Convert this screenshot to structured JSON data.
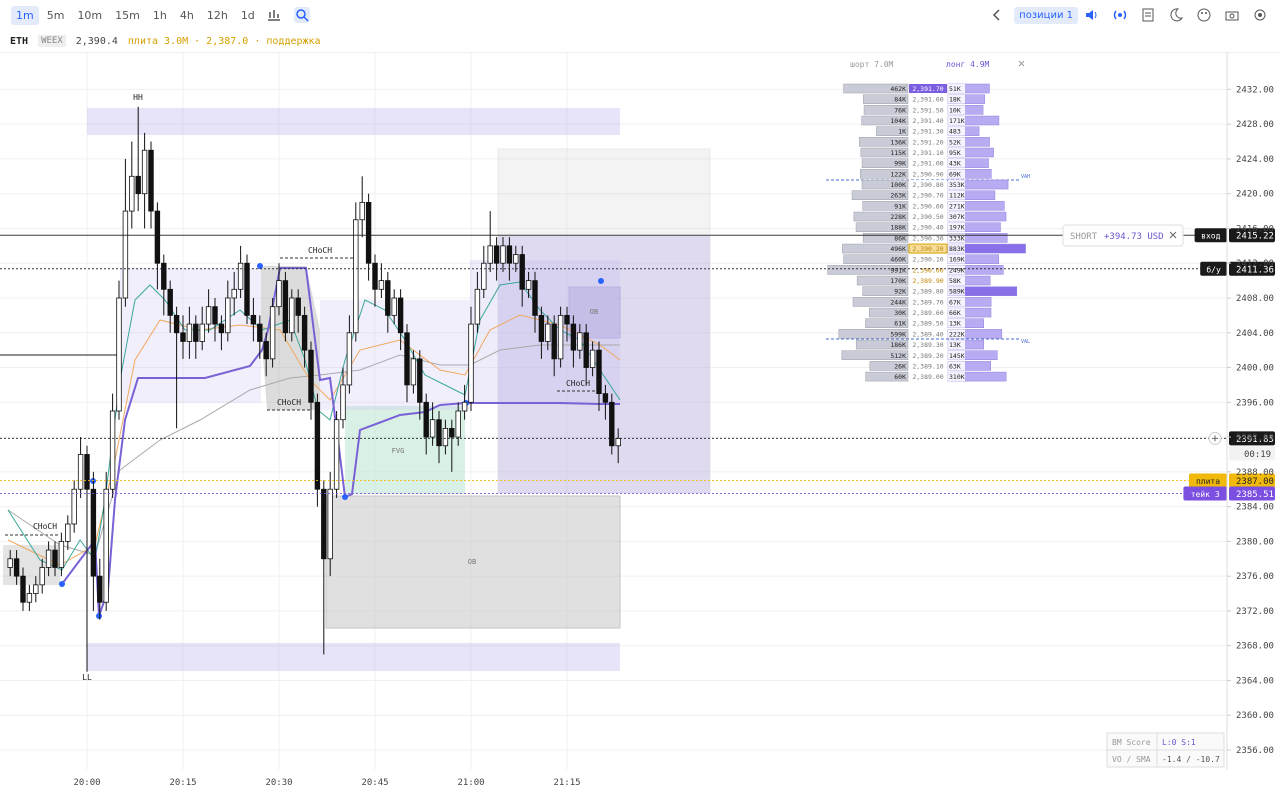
{
  "toolbar": {
    "timeframes": [
      "1m",
      "5m",
      "10m",
      "15m",
      "1h",
      "4h",
      "12h",
      "1d"
    ],
    "positions": "позиции 1"
  },
  "header": {
    "symbol": "ETH",
    "exchange": "WEEX",
    "price": "2,390.4",
    "note": "плита 3.0M · 2,387.0 · поддержка"
  },
  "chart_data": {
    "type": "candlestick",
    "categories": [
      null,
      null,
      null,
      null,
      null,
      null,
      null,
      null,
      null,
      null,
      null,
      null,
      "20:00",
      null,
      null,
      null,
      null,
      null,
      null,
      null,
      null,
      null,
      null,
      null,
      null,
      null,
      null,
      "20:15",
      null,
      null,
      null,
      null,
      null,
      null,
      null,
      null,
      null,
      null,
      null,
      null,
      null,
      null,
      "20:30",
      null,
      null,
      null,
      null,
      null,
      null,
      null,
      null,
      null,
      null,
      null,
      null,
      null,
      null,
      "20:45",
      null,
      null,
      null,
      null,
      null,
      null,
      null,
      null,
      null,
      null,
      null,
      null,
      null,
      null,
      "21:00",
      null,
      null,
      null,
      null,
      null,
      null,
      null,
      null,
      null,
      null,
      null,
      null,
      null,
      null,
      "21:15",
      null,
      null,
      null,
      null,
      null,
      null,
      null,
      null
    ],
    "open": [
      2377,
      2378,
      2376,
      2373,
      2374,
      2375,
      2377,
      2379,
      2377,
      2380,
      2382,
      2386,
      2390,
      2386,
      2376,
      2373,
      2386,
      2395,
      2408,
      2418,
      2422,
      2420,
      2425,
      2418,
      2412,
      2409,
      2406,
      2404,
      2403,
      2405,
      2403,
      2405,
      2407,
      2405,
      2404,
      2408,
      2409,
      2412,
      2406,
      2405,
      2403,
      2401,
      2407,
      2410,
      2404,
      2408,
      2406,
      2402,
      2396,
      2386,
      2378,
      2386,
      2394,
      2398,
      2404,
      2417,
      2419,
      2412,
      2409,
      2410,
      2406,
      2408,
      2404,
      2398,
      2401,
      2396,
      2392,
      2394,
      2391,
      2393,
      2392,
      2395,
      2396,
      2405,
      2409,
      2412,
      2414,
      2412,
      2414,
      2412,
      2413,
      2409,
      2410,
      2406,
      2403,
      2405,
      2401,
      2406,
      2405,
      2402,
      2404,
      2400,
      2402,
      2397,
      2396,
      2391
    ],
    "high": [
      2379,
      2379,
      2377,
      2375,
      2376,
      2378,
      2380,
      2380,
      2381,
      2383,
      2387,
      2392,
      2391,
      2388,
      2378,
      2388,
      2397,
      2410,
      2424,
      2426,
      2430,
      2427,
      2426,
      2419,
      2413,
      2410,
      2407,
      2406,
      2407,
      2406,
      2407,
      2409,
      2408,
      2406,
      2410,
      2411,
      2414,
      2413,
      2408,
      2406,
      2404,
      2408,
      2412,
      2411,
      2409,
      2409,
      2407,
      2403,
      2397,
      2387,
      2388,
      2395,
      2400,
      2406,
      2419,
      2422,
      2420,
      2413,
      2412,
      2411,
      2409,
      2409,
      2405,
      2402,
      2402,
      2397,
      2396,
      2395,
      2394,
      2394,
      2396,
      2398,
      2407,
      2411,
      2414,
      2418,
      2415,
      2415,
      2415,
      2414,
      2414,
      2411,
      2411,
      2407,
      2406,
      2406,
      2407,
      2407,
      2406,
      2405,
      2405,
      2403,
      2403,
      2398,
      2397,
      2393
    ],
    "low": [
      2376,
      2375,
      2372,
      2372,
      2373,
      2374,
      2376,
      2376,
      2376,
      2379,
      2381,
      2385,
      2365,
      2372,
      2371,
      2372,
      2385,
      2394,
      2407,
      2416,
      2418,
      2416,
      2416,
      2409,
      2406,
      2404,
      2393,
      2401,
      2401,
      2401,
      2402,
      2404,
      2403,
      2402,
      2403,
      2406,
      2408,
      2405,
      2403,
      2401,
      2399,
      2400,
      2406,
      2403,
      2403,
      2404,
      2400,
      2394,
      2384,
      2367,
      2376,
      2385,
      2393,
      2397,
      2403,
      2415,
      2410,
      2407,
      2408,
      2404,
      2405,
      2402,
      2396,
      2397,
      2394,
      2390,
      2391,
      2389,
      2390,
      2388,
      2391,
      2394,
      2395,
      2404,
      2408,
      2411,
      2410,
      2411,
      2410,
      2411,
      2407,
      2408,
      2404,
      2401,
      2402,
      2399,
      2400,
      2403,
      2400,
      2401,
      2398,
      2399,
      2395,
      2394,
      2390,
      2389
    ],
    "close": [
      2378,
      2376,
      2373,
      2374,
      2375,
      2377,
      2379,
      2377,
      2380,
      2382,
      2386,
      2390,
      2386,
      2376,
      2373,
      2386,
      2395,
      2408,
      2418,
      2422,
      2420,
      2425,
      2418,
      2412,
      2409,
      2406,
      2404,
      2403,
      2405,
      2403,
      2405,
      2407,
      2405,
      2404,
      2408,
      2409,
      2412,
      2406,
      2405,
      2403,
      2401,
      2407,
      2410,
      2404,
      2408,
      2406,
      2402,
      2396,
      2386,
      2378,
      2386,
      2394,
      2398,
      2404,
      2417,
      2419,
      2412,
      2409,
      2410,
      2406,
      2408,
      2404,
      2398,
      2401,
      2396,
      2392,
      2394,
      2391,
      2393,
      2392,
      2395,
      2396,
      2405,
      2409,
      2412,
      2414,
      2412,
      2414,
      2412,
      2413,
      2409,
      2410,
      2406,
      2403,
      2405,
      2401,
      2406,
      2405,
      2402,
      2404,
      2400,
      2402,
      2397,
      2396,
      2391,
      2391.85
    ],
    "up_color": "#ffffff",
    "down_color": "#111111",
    "ylim": [
      2353.7,
      2436.3
    ],
    "yticks": [
      {
        "value": 2432,
        "label": "2432.00"
      },
      {
        "value": 2428,
        "label": "2428.00"
      },
      {
        "value": 2424,
        "label": "2424.00"
      },
      {
        "value": 2420,
        "label": "2420.00"
      },
      {
        "value": 2416,
        "label": "2416.00"
      },
      {
        "value": 2412,
        "label": "2412.00"
      },
      {
        "value": 2408,
        "label": "2408.00"
      },
      {
        "value": 2404,
        "label": "2404.00"
      },
      {
        "value": 2400,
        "label": "2400.00"
      },
      {
        "value": 2396,
        "label": "2396.00"
      },
      {
        "value": 2392,
        "label": "2392.00"
      },
      {
        "value": 2388,
        "label": "2388.00"
      },
      {
        "value": 2384,
        "label": "2384.00"
      },
      {
        "value": 2380,
        "label": "2380.00"
      },
      {
        "value": 2376,
        "label": "2376.00"
      },
      {
        "value": 2372,
        "label": "2372.00"
      },
      {
        "value": 2368,
        "label": "2368.00"
      },
      {
        "value": 2364,
        "label": "2364.00"
      },
      {
        "value": 2360,
        "label": "2360.00"
      },
      {
        "value": 2356,
        "label": "2356.00"
      }
    ],
    "grid": true,
    "price_lines": [
      {
        "name": "вход",
        "value": 2415.22,
        "color": "#1a1a1a",
        "style": "solid"
      },
      {
        "name": "б/у",
        "value": 2411.36,
        "color": "#1a1a1a",
        "style": "dotted"
      },
      {
        "value": 2391.85,
        "timer": "00:19",
        "color": "#1a1a1a",
        "style": "dotted"
      },
      {
        "name": "плита",
        "value": 2387,
        "value_label": "2387.00",
        "color": "#f0b90b",
        "style": "dotted"
      },
      {
        "name": "тейк 3",
        "value": 2385.51,
        "color": "#7b4fe0",
        "style": "dotted"
      }
    ],
    "annotations": [
      "HH",
      "LL",
      "CHoCH",
      "CHoCH",
      "CHoCH",
      "CHoCH",
      "FVG",
      "OB",
      "OB",
      "VAH",
      "VAL"
    ]
  },
  "orderbook": {
    "short_total": "шорт 7.0M",
    "long_total": "лонг 4.9M",
    "rows": [
      {
        "short": "462K",
        "price": "2,391.70",
        "long": "51K"
      },
      {
        "short": "84K",
        "price": "2,391.60",
        "long": "18K"
      },
      {
        "short": "76K",
        "price": "2,391.50",
        "long": "10K"
      },
      {
        "short": "104K",
        "price": "2,391.40",
        "long": "171K"
      },
      {
        "short": "1K",
        "price": "2,391.30",
        "long": "483"
      },
      {
        "short": "136K",
        "price": "2,391.20",
        "long": "52K"
      },
      {
        "short": "115K",
        "price": "2,391.10",
        "long": "95K"
      },
      {
        "short": "99K",
        "price": "2,391.00",
        "long": "43K"
      },
      {
        "short": "122K",
        "price": "2,390.90",
        "long": "69K"
      },
      {
        "short": "100K",
        "price": "2,390.80",
        "long": "353K"
      },
      {
        "short": "263K",
        "price": "2,390.70",
        "long": "112K"
      },
      {
        "short": "91K",
        "price": "2,390.60",
        "long": "271K"
      },
      {
        "short": "228K",
        "price": "2,390.50",
        "long": "307K"
      },
      {
        "short": "188K",
        "price": "2,390.40",
        "long": "197K"
      },
      {
        "short": "86K",
        "price": "2,390.30",
        "long": "333K"
      },
      {
        "short": "496K",
        "price": "2,390.20",
        "long": "883K"
      },
      {
        "short": "460K",
        "price": "2,390.10",
        "long": "169K"
      },
      {
        "short": "991K",
        "price": "2,390.00",
        "long": "249K"
      },
      {
        "short": "170K",
        "price": "2,389.90",
        "long": "58K"
      },
      {
        "short": "92K",
        "price": "2,389.80",
        "long": "589K"
      },
      {
        "short": "244K",
        "price": "2,389.70",
        "long": "67K"
      },
      {
        "short": "30K",
        "price": "2,389.60",
        "long": "66K"
      },
      {
        "short": "61K",
        "price": "2,389.50",
        "long": "13K"
      },
      {
        "short": "599K",
        "price": "2,389.40",
        "long": "222K"
      },
      {
        "short": "186K",
        "price": "2,389.30",
        "long": "13K"
      },
      {
        "short": "512K",
        "price": "2,389.20",
        "long": "145K"
      },
      {
        "short": "26K",
        "price": "2,389.10",
        "long": "63K"
      },
      {
        "short": "60K",
        "price": "2,389.00",
        "long": "310K"
      }
    ]
  },
  "position": {
    "side": "SHORT",
    "pnl": "+394.73 USD"
  },
  "stats": {
    "bm_label": "BM Score",
    "bm_value": "L:0 S:1",
    "vo_label": "VO / SMA",
    "vo_value": "-1.4 / -10.7"
  }
}
